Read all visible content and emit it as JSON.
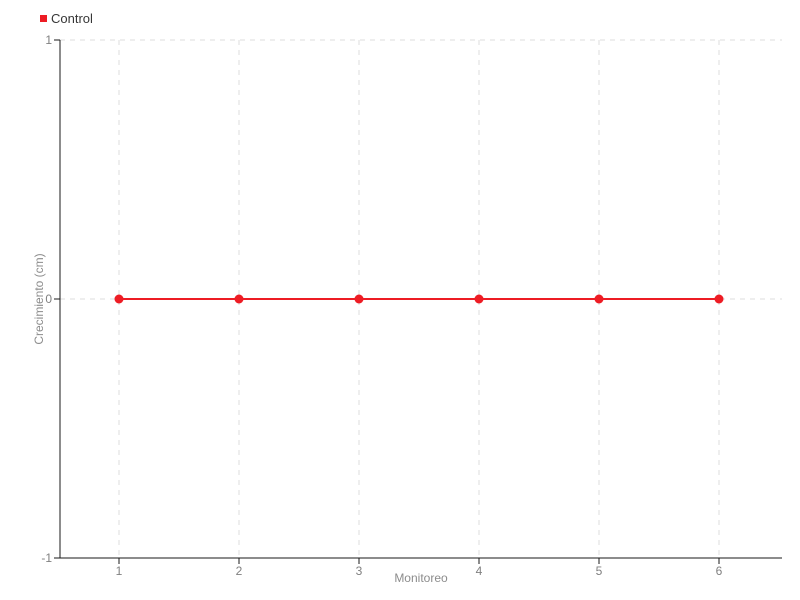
{
  "chart_data": {
    "type": "line",
    "x": [
      1,
      2,
      3,
      4,
      5,
      6
    ],
    "series": [
      {
        "name": "Control",
        "color": "#ed1c24",
        "marker": "circle",
        "values": [
          0,
          0,
          0,
          0,
          0,
          0
        ]
      }
    ],
    "title": "",
    "xlabel": "Monitoreo",
    "ylabel": "Crecimiento (cm)",
    "xticks": [
      1,
      2,
      3,
      4,
      5,
      6
    ],
    "yticks": [
      1,
      0,
      -1
    ],
    "ylim": [
      -1,
      1
    ],
    "grid": true,
    "legend_position": "top-left"
  }
}
